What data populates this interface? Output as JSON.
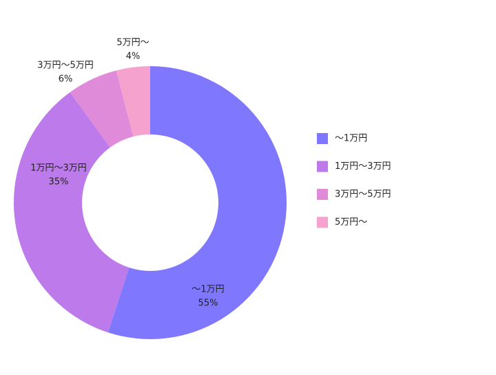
{
  "chart_data": {
    "type": "donut",
    "categories": [
      "〜1万円",
      "1万円〜3万円",
      "3万円〜5万円",
      "5万円〜"
    ],
    "values": [
      55,
      35,
      6,
      4
    ],
    "value_labels": [
      "55%",
      "35%",
      "6%",
      "4%"
    ],
    "colors": [
      "#7f77fe",
      "#bd7aeb",
      "#e08ada",
      "#f5a2cf"
    ],
    "legend": "right"
  }
}
